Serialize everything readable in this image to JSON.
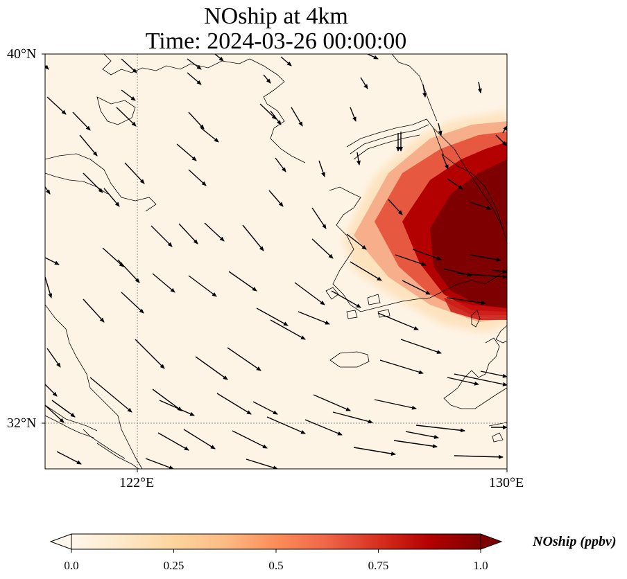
{
  "title": {
    "line1": "NOship at 4km",
    "line2": "Time: 2024-03-26 00:00:00"
  },
  "map": {
    "extent": {
      "lon_min": 119,
      "lon_max": 130,
      "lat_min": 31,
      "lat_max": 40
    },
    "lat_ticks": [
      {
        "value": 40,
        "label": "40°N"
      },
      {
        "value": 32,
        "label": "32°N"
      }
    ],
    "lon_ticks": [
      {
        "value": 122,
        "label": "122°E"
      },
      {
        "value": 130,
        "label": "130°E"
      }
    ],
    "gridlines": {
      "lat": [
        32
      ],
      "lon": [
        122
      ],
      "style": "dotted"
    }
  },
  "colorbar": {
    "label": "NOship (ppbv)",
    "colormap": "OrRd",
    "extend": "both",
    "min": 0.0,
    "max": 1.0,
    "ticks": [
      "0.0",
      "0.25",
      "0.5",
      "0.75",
      "1.0"
    ],
    "stops": [
      "#fff7ec",
      "#fee8c8",
      "#fdd49e",
      "#fdbb84",
      "#fc8d59",
      "#ef6548",
      "#d7301f",
      "#b30000",
      "#7f0000"
    ]
  },
  "chart_data": {
    "type": "heatmap",
    "variable": "NOship",
    "units": "ppbv",
    "plume": {
      "description_values": [
        {
          "lon": 128.8,
          "lat": 36.0,
          "value": 1.0
        },
        {
          "lon": 129.5,
          "lat": 37.5,
          "value": 1.0
        },
        {
          "lon": 128.3,
          "lat": 37.0,
          "value": 0.8
        },
        {
          "lon": 127.2,
          "lat": 36.0,
          "value": 0.55
        },
        {
          "lon": 126.7,
          "lat": 35.6,
          "value": 0.3
        },
        {
          "lon": 128.0,
          "lat": 34.5,
          "value": 0.2
        }
      ]
    }
  }
}
